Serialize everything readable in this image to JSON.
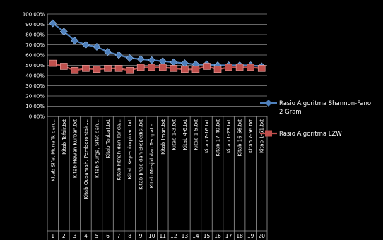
{
  "chart_data": {
    "type": "line",
    "ylim": [
      0,
      100
    ],
    "y_ticks": [
      "0.00%",
      "10.00%",
      "20.00%",
      "30.00%",
      "40.00%",
      "50.00%",
      "60.00%",
      "70.00%",
      "80.00%",
      "90.00%",
      "100.00%"
    ],
    "grid": true,
    "legend_position": "right",
    "background": "#000000",
    "categories": [
      "Kitab Sifat Munafik dan...",
      "Kitab Tafsir.txt",
      "Kitab Hewan Kurban.txt",
      "Kitab Qusamah, Pemberontak,...",
      "Kitab Surga, Sifat dan...",
      "Kitab Taubat.txt",
      "Kitab Fitnah dan Tanda...",
      "Kitab Kepemimpinan.txt",
      "Kitab Jihad dan Ekspedisi.txt",
      "Kitab Masjid dan Tempat -...",
      "Kitab Iman.txt",
      "Kitab 1-3.txt",
      "Kitab 4-6.txt",
      "Kitab 1-5.txt",
      "Kitab 7-16.txt",
      "Kitab 17-40.txt",
      "Kitab 1-23.txt",
      "Kitab 16-56.txt",
      "Kitab 7-56.txt",
      "Kitab 1-51.txt"
    ],
    "row_numbers": [
      "1",
      "2",
      "3",
      "4",
      "5",
      "6",
      "7",
      "8",
      "9",
      "10",
      "11",
      "12",
      "13",
      "14",
      "15",
      "16",
      "17",
      "18",
      "19",
      "20"
    ],
    "series": [
      {
        "name": "Rasio Algoritma Shannon-Fano 2 Gram",
        "color": "#4f81bd",
        "marker": "diamond",
        "values": [
          91,
          83,
          74,
          70,
          68,
          63,
          60,
          57,
          56,
          55,
          54,
          53,
          52,
          51,
          51,
          50,
          50,
          50,
          50,
          49
        ]
      },
      {
        "name": "Rasio Algoritma LZW",
        "color": "#c0504d",
        "marker": "square",
        "values": [
          52,
          49,
          45,
          47,
          46,
          47,
          47,
          45,
          48,
          48,
          48,
          47,
          46,
          46,
          49,
          46,
          48,
          48,
          48,
          47
        ]
      }
    ],
    "legend": [
      {
        "label_lines": [
          "Rasio Algoritma Shannon-Fano",
          "2 Gram"
        ]
      },
      {
        "label_lines": [
          "Rasio Algoritma LZW"
        ]
      }
    ]
  }
}
